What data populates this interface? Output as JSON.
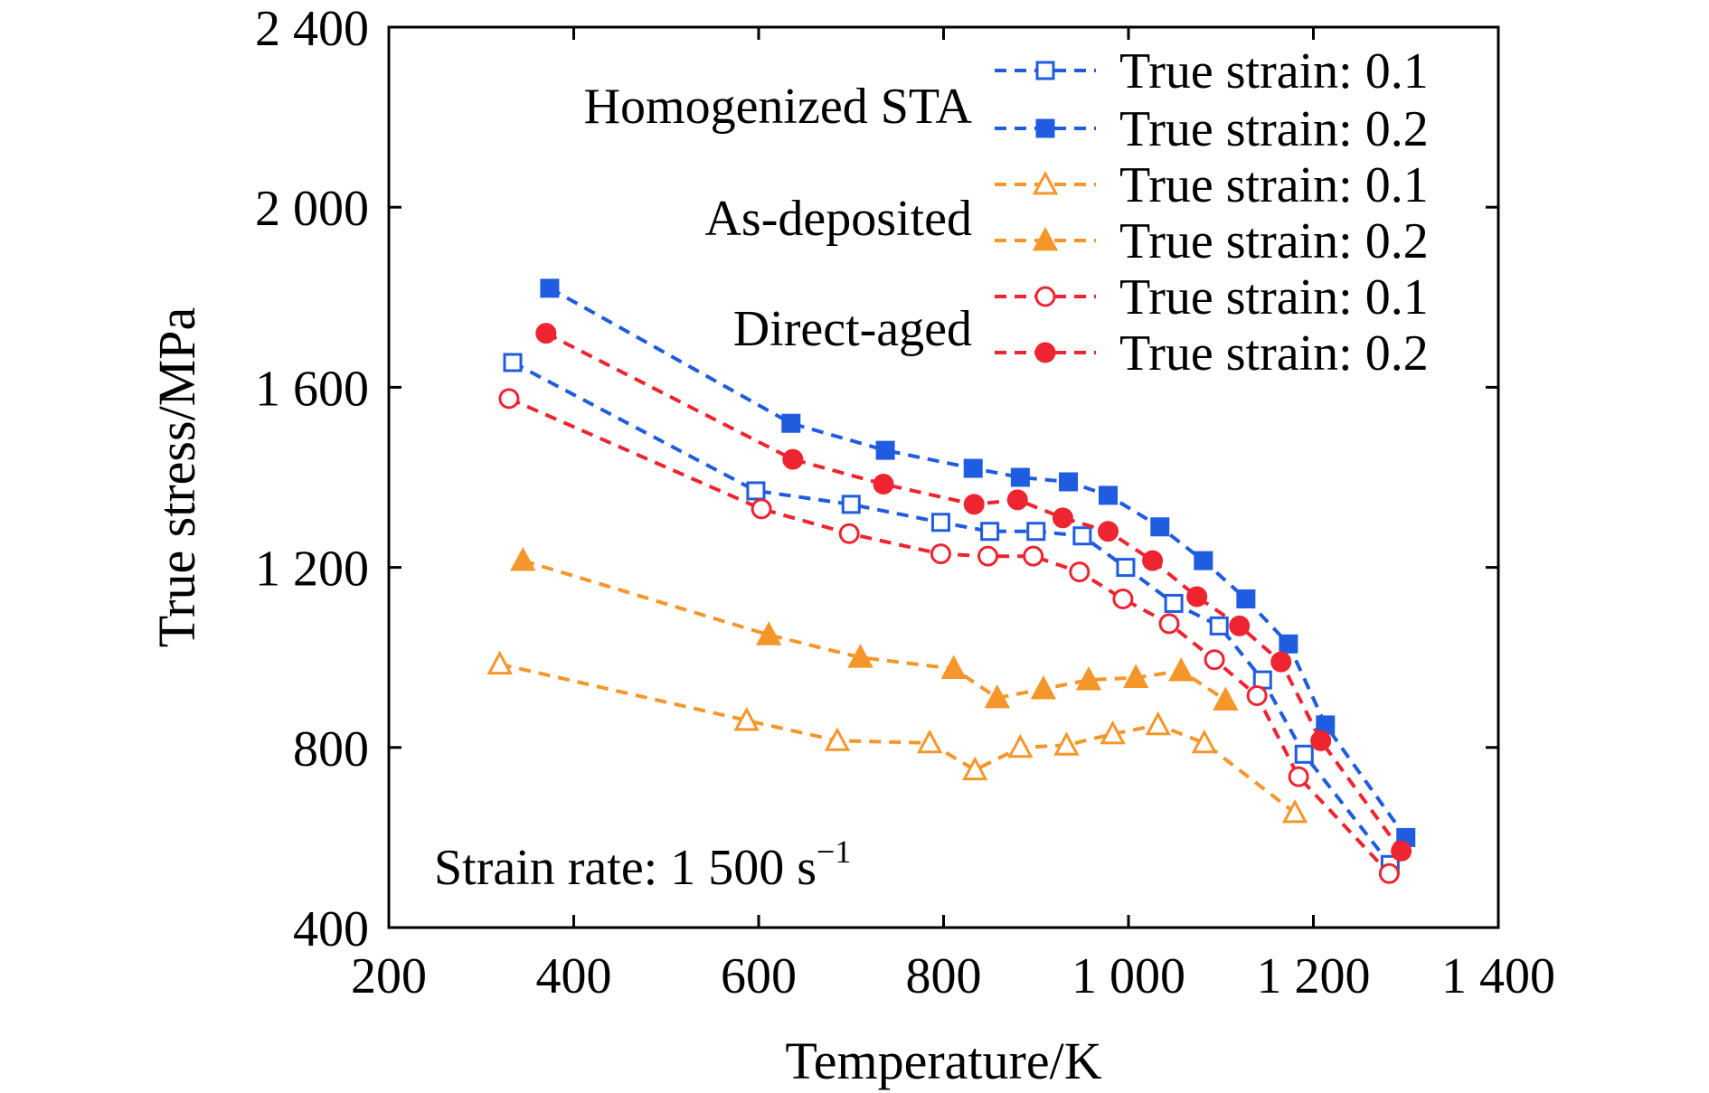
{
  "chart_data": {
    "type": "line",
    "xlabel": "Temperature/K",
    "ylabel": "True stress/MPa",
    "xlim": [
      200,
      1400
    ],
    "ylim": [
      400,
      2400
    ],
    "xticks": [
      200,
      400,
      600,
      800,
      1000,
      1200,
      1400
    ],
    "xtick_labels": [
      "200",
      "400",
      "600",
      "800",
      "1 000",
      "1 200",
      "1 400"
    ],
    "yticks": [
      400,
      800,
      1200,
      1600,
      2000,
      2400
    ],
    "ytick_labels": [
      "400",
      "800",
      "1 200",
      "1 600",
      "2 000",
      "2 400"
    ],
    "annotation": "Strain rate: 1 500 s",
    "annotation_sup": "−1",
    "groups": [
      {
        "label": "Homogenized STA"
      },
      {
        "label": "As-deposited"
      },
      {
        "label": "Direct-aged"
      }
    ],
    "legend_position": "top-right",
    "colors": {
      "blue": "#1f5ce0",
      "orange": "#f5962a",
      "red": "#ee2430"
    },
    "series": [
      {
        "name": "True strain: 0.1",
        "group": 0,
        "color": "#1f5ce0",
        "marker": "square",
        "filled": false,
        "x": [
          334,
          597,
          700,
          797,
          850,
          900,
          950,
          997,
          1049,
          1098,
          1145,
          1190,
          1283
        ],
        "y": [
          1655,
          1370,
          1340,
          1300,
          1280,
          1280,
          1270,
          1200,
          1120,
          1070,
          950,
          785,
          540
        ]
      },
      {
        "name": "True strain: 0.2",
        "group": 0,
        "color": "#1f5ce0",
        "marker": "square",
        "filled": true,
        "x": [
          374,
          635,
          737,
          832,
          883,
          935,
          978,
          1034,
          1081,
          1127,
          1173,
          1213,
          1300
        ],
        "y": [
          1820,
          1520,
          1460,
          1420,
          1400,
          1390,
          1360,
          1290,
          1215,
          1130,
          1030,
          850,
          600
        ]
      },
      {
        "name": "True strain: 0.1",
        "group": 1,
        "color": "#f5962a",
        "marker": "triangle",
        "filled": false,
        "x": [
          320,
          587,
          685,
          785,
          834,
          883,
          933,
          983,
          1032,
          1082,
          1180
        ],
        "y": [
          985,
          860,
          815,
          810,
          750,
          800,
          805,
          830,
          850,
          810,
          655
        ]
      },
      {
        "name": "True strain: 0.2",
        "group": 1,
        "color": "#f5962a",
        "marker": "triangle",
        "filled": true,
        "x": [
          345,
          611,
          710,
          811,
          858,
          908,
          957,
          1008,
          1057,
          1105
        ],
        "y": [
          1215,
          1050,
          1000,
          975,
          910,
          930,
          950,
          955,
          970,
          905
        ]
      },
      {
        "name": "True strain: 0.1",
        "group": 2,
        "color": "#ee2430",
        "marker": "circle",
        "filled": false,
        "x": [
          330,
          603,
          698,
          797,
          848,
          897,
          947,
          994,
          1044,
          1093,
          1139,
          1184,
          1282
        ],
        "y": [
          1575,
          1330,
          1275,
          1230,
          1225,
          1225,
          1190,
          1130,
          1075,
          995,
          915,
          735,
          520
        ]
      },
      {
        "name": "True strain: 0.2",
        "group": 2,
        "color": "#ee2430",
        "marker": "circle",
        "filled": true,
        "x": [
          370,
          637,
          735,
          833,
          880,
          929,
          978,
          1026,
          1074,
          1120,
          1165,
          1208,
          1295
        ],
        "y": [
          1720,
          1440,
          1385,
          1340,
          1350,
          1310,
          1280,
          1215,
          1135,
          1070,
          990,
          815,
          570
        ]
      }
    ]
  }
}
